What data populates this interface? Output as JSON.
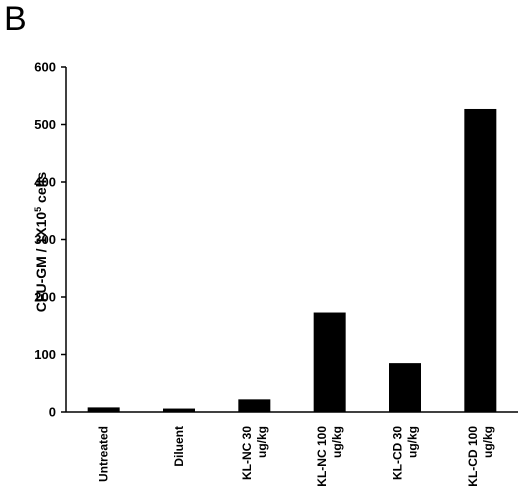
{
  "panel_label": "B",
  "chart_data": {
    "type": "bar",
    "title": "",
    "xlabel": "",
    "ylabel_main": "CFU-GM / 1X10",
    "ylabel_sup": "5",
    "ylabel_tail": " cells",
    "ylim": [
      0,
      600
    ],
    "yticks": [
      0,
      100,
      200,
      300,
      400,
      500,
      600
    ],
    "categories": [
      [
        "Untreated"
      ],
      [
        "Diluent"
      ],
      [
        "KL-NC  30",
        "ug/kg"
      ],
      [
        "KL-NC  100",
        "ug/kg"
      ],
      [
        "KL-CD  30",
        "ug/kg"
      ],
      [
        "KL-CD  100",
        "ug/kg"
      ]
    ],
    "values": [
      8,
      6,
      22,
      173,
      85,
      527
    ],
    "bar_color": "#000000",
    "grid": false,
    "legend": "none"
  }
}
